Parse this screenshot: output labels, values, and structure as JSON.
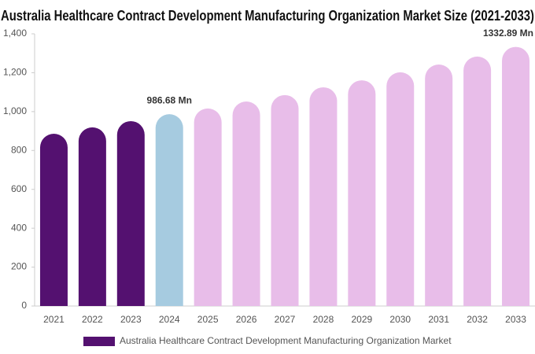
{
  "chart_data": {
    "type": "bar",
    "title": "Australia Healthcare Contract Development Manufacturing Organization Market Size (2021-2033)",
    "categories": [
      "2021",
      "2022",
      "2023",
      "2024",
      "2025",
      "2026",
      "2027",
      "2028",
      "2029",
      "2030",
      "2031",
      "2032",
      "2033"
    ],
    "series": [
      {
        "name": "Australia Healthcare Contract Development Manufacturing Organization Market",
        "color": "#541170",
        "colors": [
          "#541170",
          "#541170",
          "#541170",
          "#a6cbe0",
          "#e8bde9",
          "#e8bde9",
          "#e8bde9",
          "#e8bde9",
          "#e8bde9",
          "#e8bde9",
          "#e8bde9",
          "#e8bde9",
          "#e8bde9"
        ],
        "values": [
          886,
          919,
          951,
          986.68,
          1016,
          1052,
          1085,
          1125,
          1161,
          1202,
          1242,
          1283,
          1332.89
        ],
        "value_labels": [
          null,
          null,
          null,
          "986.68 Mn",
          null,
          null,
          null,
          null,
          null,
          null,
          null,
          null,
          "1332.89 Mn"
        ]
      }
    ],
    "ylim": [
      0,
      1400
    ],
    "yticks": [
      0,
      200,
      400,
      600,
      800,
      {
        "value": 1000,
        "label": "1,000"
      },
      {
        "value": 1200,
        "label": "1,200"
      },
      {
        "value": 1400,
        "label": "1,400"
      }
    ],
    "legend": "bottom"
  }
}
